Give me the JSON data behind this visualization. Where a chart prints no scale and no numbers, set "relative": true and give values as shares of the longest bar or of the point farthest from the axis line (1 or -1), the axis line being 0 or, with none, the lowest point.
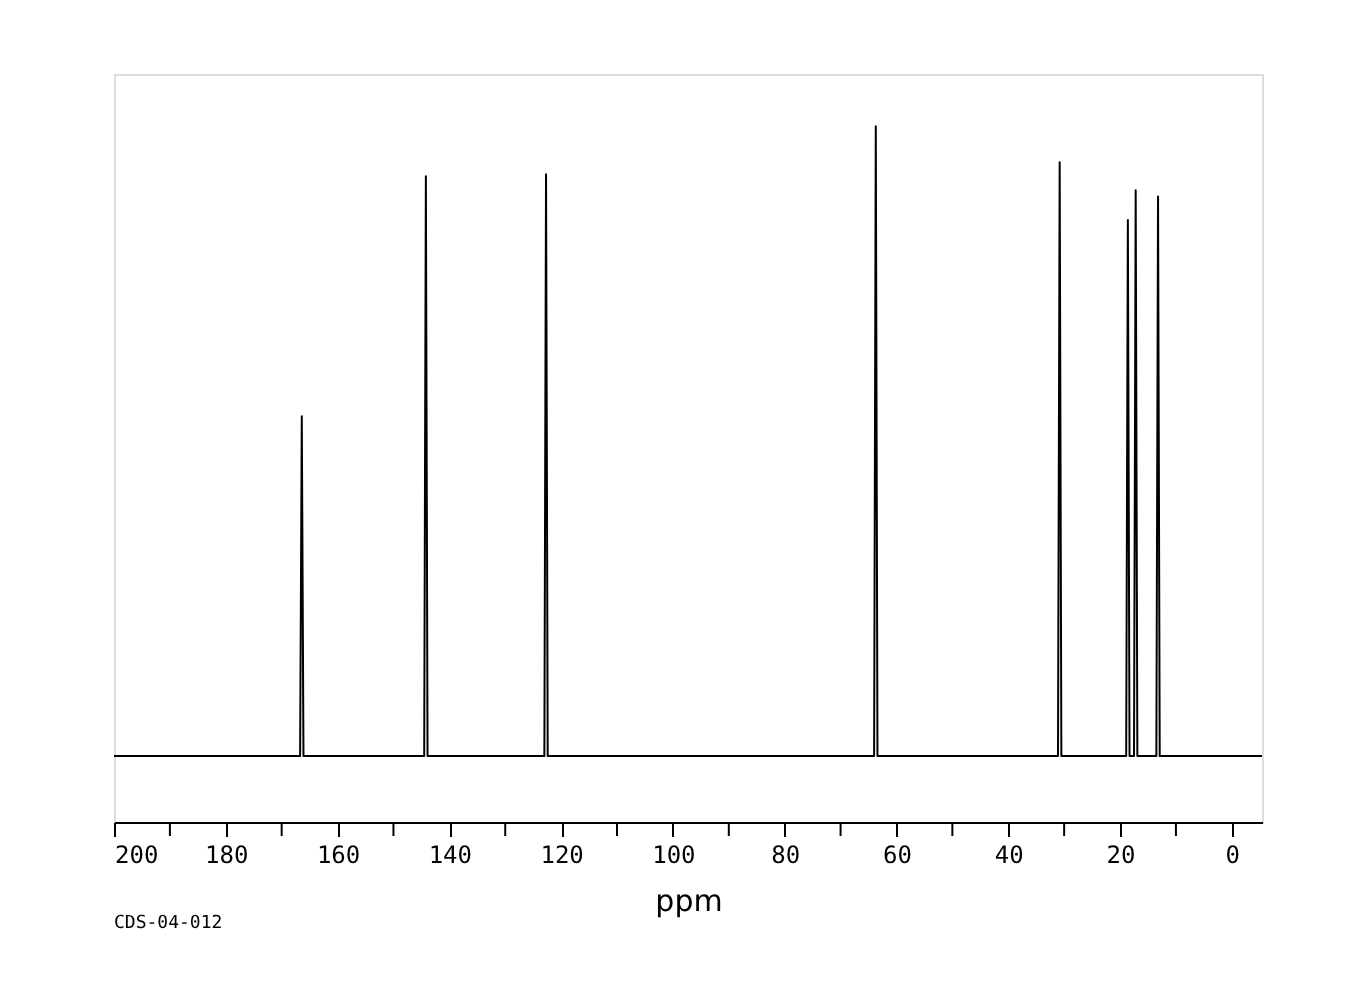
{
  "chart_data": {
    "type": "line",
    "relative": true,
    "xlabel": "ppm",
    "annotations": [
      "CDS-04-012"
    ],
    "x": [
      200,
      166.7,
      166.4,
      166.1,
      144.5,
      144.2,
      143.9,
      123.0,
      122.7,
      122.4,
      64.0,
      63.7,
      63.4,
      31.1,
      30.8,
      30.5,
      18.9,
      18.6,
      18.3,
      17.5,
      17.2,
      16.9,
      13.5,
      13.2,
      12.9,
      -5.4
    ],
    "series": [
      {
        "color": "#000000",
        "values": [
          0.095,
          0.095,
          0.583,
          0.095,
          0.095,
          0.928,
          0.095,
          0.095,
          0.931,
          0.095,
          0.095,
          1,
          0.095,
          0.095,
          0.948,
          0.095,
          0.095,
          0.865,
          0.095,
          0.095,
          0.908,
          0.095,
          0.095,
          0.899,
          0.095,
          0.095
        ]
      }
    ],
    "xlim": [
      200,
      -5.4
    ],
    "xticks": [
      200,
      {
        "value": 190,
        "label": null
      },
      180,
      {
        "value": 170,
        "label": null
      },
      160,
      {
        "value": 150,
        "label": null
      },
      140,
      {
        "value": 130,
        "label": null
      },
      120,
      {
        "value": 110,
        "label": null
      },
      100,
      {
        "value": 90,
        "label": null
      },
      80,
      {
        "value": 70,
        "label": null
      },
      60,
      {
        "value": 50,
        "label": null
      },
      40,
      {
        "value": 30,
        "label": null
      },
      20,
      {
        "value": 10,
        "label": null
      },
      0
    ],
    "grid": false,
    "marker": "none",
    "line_style": "solid"
  }
}
